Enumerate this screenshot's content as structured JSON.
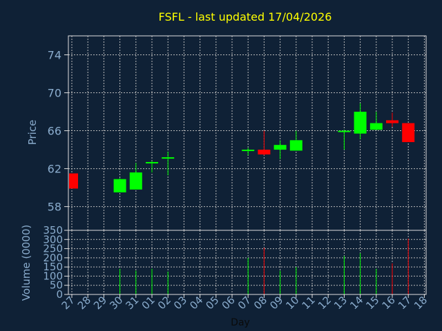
{
  "chart_data": [
    {
      "type": "candlestick",
      "title": "FSFL - last updated 17/04/2026",
      "ylabel": "Price",
      "ylim": [
        55.5,
        76
      ],
      "yticks": [
        58,
        62,
        66,
        70,
        74
      ],
      "xlabel": "Day",
      "x_ticks": [
        "27",
        "28",
        "29",
        "30",
        "31",
        "01",
        "02",
        "03",
        "04",
        "05",
        "06",
        "07",
        "08",
        "09",
        "10",
        "11",
        "12",
        "13",
        "14",
        "15",
        "16",
        "17",
        "18"
      ],
      "candles": [
        {
          "day": "27",
          "open": 61.5,
          "high": 61.5,
          "low": 59.9,
          "close": 59.9
        },
        {
          "day": "30",
          "open": 59.5,
          "high": 61.0,
          "low": 59.5,
          "close": 60.9
        },
        {
          "day": "31",
          "open": 59.8,
          "high": 62.6,
          "low": 59.8,
          "close": 61.6
        },
        {
          "day": "01",
          "open": 62.6,
          "high": 62.8,
          "low": 61.6,
          "close": 62.7
        },
        {
          "day": "02",
          "open": 63.1,
          "high": 63.8,
          "low": 61.3,
          "close": 63.2
        },
        {
          "day": "07",
          "open": 63.9,
          "high": 64.2,
          "low": 63.4,
          "close": 64.0
        },
        {
          "day": "08",
          "open": 64.0,
          "high": 66.0,
          "low": 63.4,
          "close": 63.5
        },
        {
          "day": "09",
          "open": 64.0,
          "high": 65.0,
          "low": 63.0,
          "close": 64.5
        },
        {
          "day": "10",
          "open": 63.9,
          "high": 66.0,
          "low": 63.9,
          "close": 65.0
        },
        {
          "day": "13",
          "open": 65.9,
          "high": 66.1,
          "low": 64.0,
          "close": 66.0
        },
        {
          "day": "14",
          "open": 65.7,
          "high": 68.9,
          "low": 65.1,
          "close": 68.0
        },
        {
          "day": "15",
          "open": 66.1,
          "high": 68.0,
          "low": 66.1,
          "close": 66.8
        },
        {
          "day": "16",
          "open": 67.1,
          "high": 67.9,
          "low": 66.4,
          "close": 66.8
        },
        {
          "day": "17",
          "open": 66.8,
          "high": 66.8,
          "low": 64.8,
          "close": 64.8
        }
      ]
    },
    {
      "type": "bar",
      "ylabel": "Volume (0000)",
      "ylim": [
        0,
        350
      ],
      "yticks": [
        0,
        50,
        100,
        150,
        200,
        250,
        300,
        350
      ],
      "volumes": [
        {
          "day": "30",
          "value": 140,
          "direction": "up"
        },
        {
          "day": "31",
          "value": 130,
          "direction": "up"
        },
        {
          "day": "01",
          "value": 140,
          "direction": "up"
        },
        {
          "day": "02",
          "value": 125,
          "direction": "up"
        },
        {
          "day": "07",
          "value": 200,
          "direction": "up"
        },
        {
          "day": "08",
          "value": 255,
          "direction": "down"
        },
        {
          "day": "09",
          "value": 130,
          "direction": "up"
        },
        {
          "day": "10",
          "value": 150,
          "direction": "up"
        },
        {
          "day": "13",
          "value": 210,
          "direction": "up"
        },
        {
          "day": "14",
          "value": 225,
          "direction": "up"
        },
        {
          "day": "15",
          "value": 140,
          "direction": "up"
        },
        {
          "day": "16",
          "value": 170,
          "direction": "down"
        },
        {
          "day": "17",
          "value": 305,
          "direction": "down"
        }
      ]
    }
  ],
  "colors": {
    "background": "#0f2136",
    "axis": "#e0e0e0",
    "grid": "#bcbcbc",
    "title": "#ffff00",
    "labels": "#8aaccd",
    "up": "#00ff00",
    "down": "#ff0000"
  }
}
